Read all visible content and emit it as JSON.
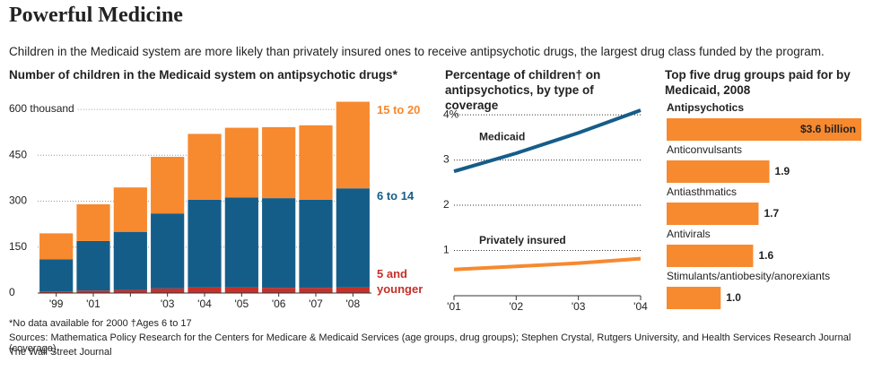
{
  "header": {
    "title": "Powerful Medicine",
    "subtitle": "Children in the Medicaid system are more likely than privately insured ones to receive antipsychotic drugs, the largest drug class funded by the program."
  },
  "chart_data": [
    {
      "type": "stacked-bar",
      "title": "Number of children in the Medicaid system on antipsychotic drugs*",
      "categories": [
        "'99",
        "'01",
        null,
        "'03",
        "'04",
        "'05",
        "'06",
        "'07",
        "'08"
      ],
      "series": [
        {
          "name": "5 and younger",
          "color": "#c4312a",
          "values": [
            5,
            8,
            10,
            15,
            18,
            18,
            17,
            17,
            18
          ]
        },
        {
          "name": "6 to 14",
          "color": "#155d89",
          "values": [
            105,
            162,
            190,
            245,
            287,
            294,
            293,
            288,
            324
          ]
        },
        {
          "name": "15 to 20",
          "color": "#f7892f",
          "values": [
            85,
            120,
            145,
            185,
            215,
            228,
            232,
            243,
            283
          ]
        }
      ],
      "ylim": [
        0,
        650
      ],
      "yticks": [
        0,
        150,
        300,
        450,
        {
          "value": 600,
          "label": "600 thousand"
        }
      ],
      "grid": true
    },
    {
      "type": "line",
      "title": "Percentage of children† on antipsychotics, by type of coverage",
      "x": [
        2001,
        2002,
        2003,
        2004
      ],
      "xticks": [
        {
          "value": 2001,
          "label": "'01"
        },
        {
          "value": 2002,
          "label": "'02"
        },
        {
          "value": 2003,
          "label": "'03"
        },
        {
          "value": 2004,
          "label": "'04"
        }
      ],
      "xlim": [
        2001,
        2004
      ],
      "series": [
        {
          "name": "Medicaid",
          "color": "#155d89",
          "values": [
            2.75,
            3.15,
            3.6,
            4.1
          ]
        },
        {
          "name": "Privately insured",
          "color": "#f7892f",
          "values": [
            0.58,
            0.65,
            0.72,
            0.82
          ]
        }
      ],
      "ylim": [
        0,
        4.2
      ],
      "yticks": [
        1,
        2,
        3,
        {
          "value": 4,
          "label": "4%"
        }
      ],
      "grid": true
    },
    {
      "type": "hbar",
      "title": "Top five drug groups paid for by Medicaid, 2008",
      "categories": [
        "Antipsychotics",
        "Anticonvulsants",
        "Antiasthmatics",
        "Antivirals",
        "Stimulants/antiobesity/anorexiants"
      ],
      "values": [
        3.6,
        1.9,
        1.7,
        1.6,
        1.0
      ],
      "value_labels": [
        "$3.6 billion",
        "1.9",
        "1.7",
        "1.6",
        "1.0"
      ],
      "color": "#f7892f"
    }
  ],
  "footer": {
    "notes": "*No data available for 2000   †Ages 6 to 17",
    "sources": "Sources: Mathematica Policy Research for the Centers for Medicare & Medicaid Services (age groups, drug groups); Stephen Crystal, Rutgers University, and Health Services Research Journal (coverage)",
    "credit": "The Wall Street Journal"
  }
}
